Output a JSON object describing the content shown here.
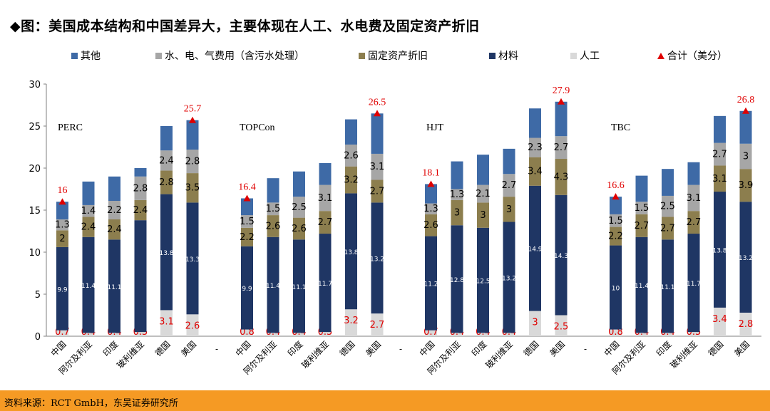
{
  "title": "◆图：美国成本结构和中国差异大，主要体现在人工、水电费及固定资产折旧",
  "footer": "资料来源：RCT GmbH，东吴证券研究所",
  "chart_data": {
    "type": "bar",
    "stacked": true,
    "ylim": [
      0,
      30
    ],
    "yticks": [
      0,
      5,
      10,
      15,
      20,
      25,
      30
    ],
    "grid": false,
    "legend_position": "top",
    "legend": [
      {
        "key": "other",
        "label": "其他",
        "color": "#3e6aa6"
      },
      {
        "key": "utilities",
        "label": "水、电、气费用（含污水处理）",
        "color": "#a6a6a6"
      },
      {
        "key": "depreciation",
        "label": "固定资产折旧",
        "color": "#8c7e4e"
      },
      {
        "key": "materials",
        "label": "材料",
        "color": "#1f3664"
      },
      {
        "key": "labor",
        "label": "人工",
        "color": "#d9d9d9"
      },
      {
        "key": "total",
        "label": "合计（美分）",
        "color": "#e00000"
      }
    ],
    "stack_order": [
      "labor",
      "materials",
      "depreciation",
      "utilities",
      "other"
    ],
    "groups": [
      {
        "name": "PERC",
        "categories": [
          "中国",
          "阿尔及利亚",
          "印度",
          "玻利维亚",
          "德国",
          "美国"
        ],
        "labor": [
          0.7,
          0.4,
          0.4,
          0.5,
          3.1,
          2.6
        ],
        "materials": [
          9.9,
          11.4,
          11.1,
          13.3,
          13.8,
          13.3
        ],
        "depreciation": [
          2,
          2.4,
          2.4,
          2.4,
          2.8,
          3.5
        ],
        "utilities": [
          1.3,
          1.4,
          2.2,
          2.8,
          2.4,
          2.8
        ],
        "other": [
          2.1,
          2.8,
          2.9,
          1.0,
          2.9,
          3.5
        ],
        "labels": {
          "labor": [
            "0.7",
            "0.4",
            "0.4",
            "0.5",
            "3.1",
            "2.6"
          ],
          "materials": [
            "9.9",
            "11.4",
            "11.1",
            "",
            "13.8",
            "13.3"
          ],
          "depreciation": [
            "2",
            "2.4",
            "2.4",
            "2.4",
            "2.8",
            "3.5"
          ],
          "utilities": [
            "1.3",
            "1.4",
            "2.2",
            "2.8",
            "2.4",
            "2.8"
          ]
        },
        "totals": [
          16,
          null,
          null,
          null,
          null,
          25.7
        ]
      },
      {
        "name": "TOPCon",
        "categories": [
          "中国",
          "阿尔及利亚",
          "印度",
          "玻利维亚",
          "德国",
          "美国"
        ],
        "labor": [
          0.8,
          0.4,
          0.4,
          0.5,
          3.2,
          2.7
        ],
        "materials": [
          9.9,
          11.4,
          11.1,
          11.7,
          13.8,
          13.2
        ],
        "depreciation": [
          2.2,
          2.6,
          2.6,
          2.7,
          3.2,
          2.7
        ],
        "utilities": [
          1.5,
          1.5,
          2.5,
          3.1,
          2.6,
          3.1
        ],
        "other": [
          2.0,
          2.9,
          3.0,
          2.6,
          3.0,
          4.8
        ],
        "labels": {
          "labor": [
            "0.8",
            "0.4",
            "0.4",
            "0.5",
            "3.2",
            "2.7"
          ],
          "materials": [
            "9.9",
            "11.4",
            "11.1",
            "11.7",
            "13.8",
            "13.2"
          ],
          "depreciation": [
            "2.2",
            "2.6",
            "2.6",
            "2.7",
            "3.2",
            "2.7"
          ],
          "utilities": [
            "1.5",
            "1.5",
            "2.5",
            "3.1",
            "2.6",
            "3.1"
          ]
        },
        "totals": [
          16.4,
          null,
          null,
          null,
          null,
          26.5
        ]
      },
      {
        "name": "HJT",
        "categories": [
          "中国",
          "阿尔及利亚",
          "印度",
          "玻利维亚",
          "德国",
          "美国"
        ],
        "labor": [
          0.7,
          0.4,
          0.4,
          0.4,
          3,
          2.5
        ],
        "materials": [
          11.2,
          12.8,
          12.5,
          13.2,
          14.9,
          14.3
        ],
        "depreciation": [
          2.6,
          3,
          3,
          3,
          3.4,
          4.3
        ],
        "utilities": [
          1.3,
          1.3,
          2.1,
          2.7,
          2.3,
          2.7
        ],
        "other": [
          2.3,
          3.3,
          3.6,
          3.0,
          3.5,
          4.1
        ],
        "labels": {
          "labor": [
            "0.7",
            "0.4",
            "0.4",
            "0.4",
            "3",
            "2.5"
          ],
          "materials": [
            "11.2",
            "12.8",
            "12.5",
            "13.2",
            "14.9",
            "14.3"
          ],
          "depreciation": [
            "2.6",
            "3",
            "3",
            "3",
            "3.4",
            "4.3"
          ],
          "utilities": [
            "1.3",
            "1.3",
            "2.1",
            "2.7",
            "2.3",
            "2.7"
          ]
        },
        "totals": [
          18.1,
          null,
          null,
          null,
          null,
          27.9
        ]
      },
      {
        "name": "TBC",
        "categories": [
          "中国",
          "阿尔及利亚",
          "印度",
          "玻利维亚",
          "德国",
          "美国"
        ],
        "labor": [
          0.8,
          0.4,
          0.4,
          0.5,
          3.4,
          2.8
        ],
        "materials": [
          10,
          11.4,
          11.1,
          11.7,
          13.8,
          13.2
        ],
        "depreciation": [
          2.2,
          2.7,
          2.7,
          2.7,
          3.1,
          3.9
        ],
        "utilities": [
          1.5,
          1.5,
          2.5,
          3.1,
          2.7,
          3
        ],
        "other": [
          2.1,
          3.1,
          3.2,
          2.7,
          3.2,
          3.9
        ],
        "labels": {
          "labor": [
            "0.8",
            "0.4",
            "0.4",
            "0.5",
            "3.4",
            "2.8"
          ],
          "materials": [
            "10",
            "11.4",
            "11.1",
            "11.7",
            "13.8",
            "13.2"
          ],
          "depreciation": [
            "2.2",
            "2.7",
            "2.7",
            "2.7",
            "3.1",
            "3.9"
          ],
          "utilities": [
            "1.5",
            "1.5",
            "2.5",
            "3.1",
            "2.7",
            "3"
          ]
        },
        "totals": [
          16.6,
          null,
          null,
          null,
          null,
          26.8
        ]
      }
    ],
    "group_separator_label": "-"
  }
}
